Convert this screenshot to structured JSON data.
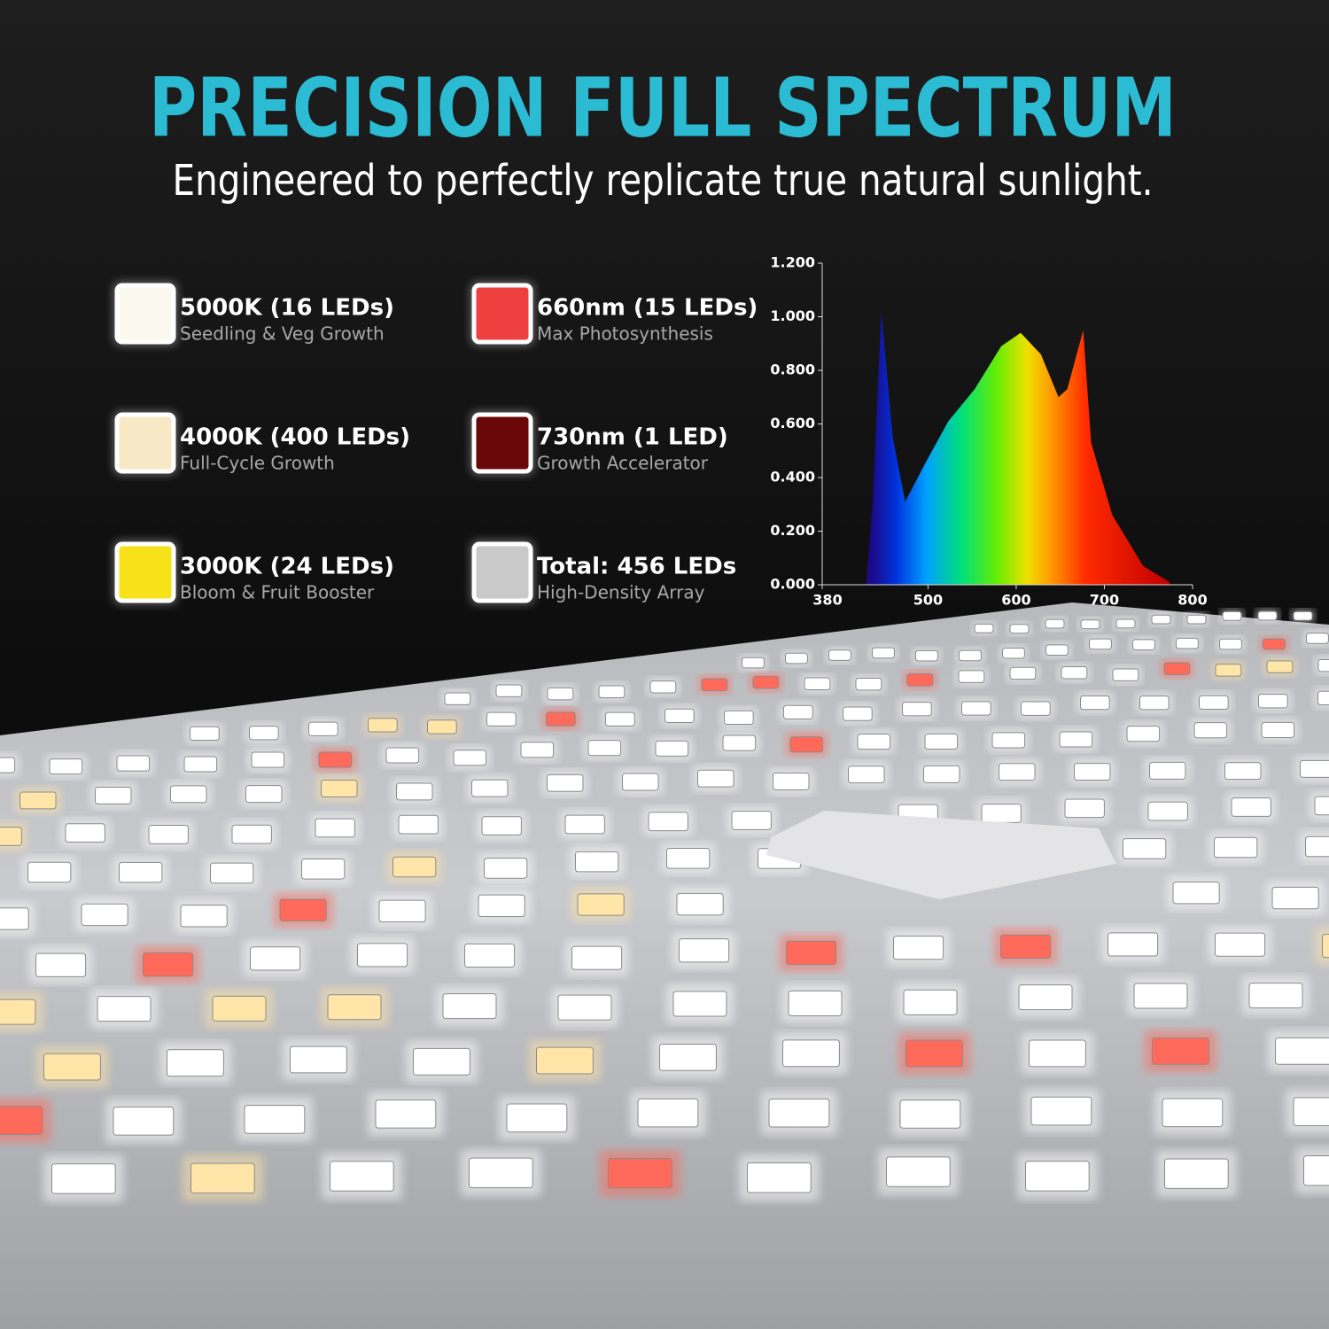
{
  "header": {
    "title": "PRECISION FULL SPECTRUM",
    "subtitle": "Engineered to perfectly replicate true natural sunlight."
  },
  "legend": [
    {
      "title": "5000K (16 LEDs)",
      "subtitle": "Seedling & Veg Growth",
      "color": "#fbf9ef"
    },
    {
      "title": "4000K (400 LEDs)",
      "subtitle": "Full-Cycle Growth",
      "color": "#f7e8c6"
    },
    {
      "title": "3000K (24 LEDs)",
      "subtitle": "Bloom & Fruit Booster",
      "color": "#f7e21a"
    },
    {
      "title": "660nm (15 LEDs)",
      "subtitle": "Max Photosynthesis",
      "color": "#ef4040"
    },
    {
      "title": "730nm (1 LED)",
      "subtitle": "Growth Accelerator",
      "color": "#6a0707"
    },
    {
      "title": "Total: 456 LEDs",
      "subtitle": "High-Density Array",
      "color": "#c9c9c9"
    }
  ],
  "chart_data": {
    "type": "area",
    "x": [
      430,
      437,
      447,
      460,
      474,
      498,
      523,
      553,
      583,
      605,
      628,
      648,
      658,
      676,
      685,
      709,
      744,
      774
    ],
    "values": [
      0,
      0.3,
      1.02,
      0.55,
      0.31,
      0.46,
      0.61,
      0.73,
      0.89,
      0.94,
      0.86,
      0.7,
      0.73,
      0.95,
      0.53,
      0.26,
      0.07,
      0.01
    ],
    "xlim": [
      380,
      800
    ],
    "ylim": [
      0,
      1.2
    ],
    "xticks": [
      380,
      500,
      600,
      700,
      800
    ],
    "yticks": [
      {
        "value": 0,
        "label": "0.000"
      },
      {
        "value": 0.2,
        "label": "0.200"
      },
      {
        "value": 0.4,
        "label": "0.400"
      },
      {
        "value": 0.6,
        "label": "0.600"
      },
      {
        "value": 0.8,
        "label": "0.800"
      },
      {
        "value": 1,
        "label": "1.000"
      },
      {
        "value": 1.2,
        "label": "1.200"
      }
    ]
  }
}
